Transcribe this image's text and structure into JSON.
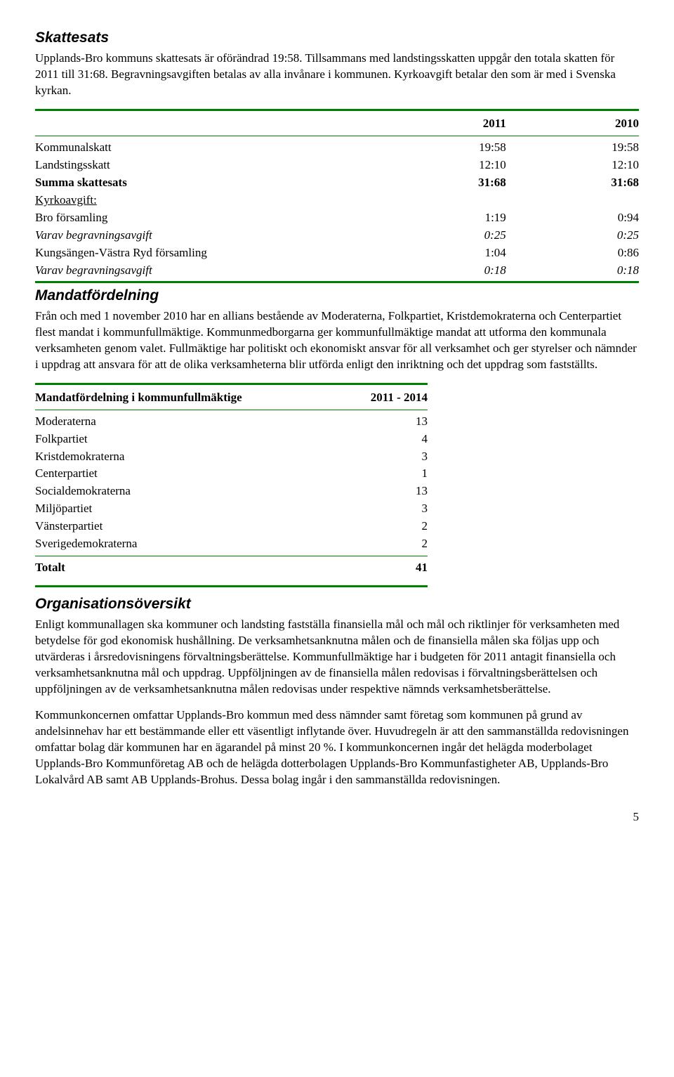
{
  "skattesats": {
    "heading": "Skattesats",
    "paragraph": "Upplands-Bro kommuns skattesats är oförändrad 19:58. Tillsammans med landstingsskatten uppgår den totala skatten för 2011 till 31:68. Begravningsavgiften betalas av alla invånare i kommunen. Kyrkoavgift betalar den som är med i Svenska kyrkan."
  },
  "tax_table": {
    "header_years": [
      "2011",
      "2010"
    ],
    "rows": [
      {
        "label": "Kommunalskatt",
        "v1": "19:58",
        "v2": "19:58",
        "bold": false
      },
      {
        "label": "Landstingsskatt",
        "v1": "12:10",
        "v2": "12:10",
        "bold": false
      },
      {
        "label": "Summa skattesats",
        "v1": "31:68",
        "v2": "31:68",
        "bold": true
      },
      {
        "label": "Kyrkoavgift:",
        "v1": "",
        "v2": "",
        "underline": true
      },
      {
        "label": "Bro församling",
        "v1": "1:19",
        "v2": "0:94",
        "bold": false
      },
      {
        "label": "Varav begravningsavgift",
        "v1": "0:25",
        "v2": "0:25",
        "italic": true
      },
      {
        "label": "Kungsängen-Västra Ryd församling",
        "v1": "1:04",
        "v2": "0:86",
        "bold": false
      },
      {
        "label": "Varav begravningsavgift",
        "v1": "0:18",
        "v2": "0:18",
        "italic": true
      }
    ]
  },
  "mandat": {
    "heading": "Mandatfördelning",
    "paragraph": "Från och med 1 november 2010 har en allians bestående av Moderaterna, Folkpartiet, Kristdemokraterna och Centerpartiet flest mandat i kommunfullmäktige. Kommunmedborgarna ger kommunfullmäktige mandat att utforma den kommunala verksamheten genom valet. Fullmäktige har politiskt och ekonomiskt ansvar för all verksamhet och ger styrelser och nämnder i uppdrag att ansvara för att de olika verksamheterna blir utförda enligt den inriktning och det uppdrag som fastställts."
  },
  "mandat_table": {
    "header_label": "Mandatfördelning i kommunfullmäktige",
    "header_period": "2011 - 2014",
    "rows": [
      {
        "party": "Moderaterna",
        "seats": "13"
      },
      {
        "party": "Folkpartiet",
        "seats": "4"
      },
      {
        "party": "Kristdemokraterna",
        "seats": "3"
      },
      {
        "party": "Centerpartiet",
        "seats": "1"
      },
      {
        "party": "Socialdemokraterna",
        "seats": "13"
      },
      {
        "party": "Miljöpartiet",
        "seats": "3"
      },
      {
        "party": "Vänsterpartiet",
        "seats": "2"
      },
      {
        "party": "Sverigedemokraterna",
        "seats": "2"
      }
    ],
    "total_label": "Totalt",
    "total_value": "41"
  },
  "org": {
    "heading": "Organisationsöversikt",
    "p1": "Enligt kommunallagen ska kommuner och landsting fastställa finansiella mål och mål och riktlinjer för verksamheten med betydelse för god ekonomisk hushållning. De verksamhetsanknutna målen och de finansiella målen ska följas upp och utvärderas i årsredovisningens förvaltningsberättelse. Kommunfullmäktige har i budgeten för 2011 antagit finansiella och verksamhetsanknutna mål och uppdrag. Uppföljningen av de finansiella målen redovisas i förvaltningsberättelsen och uppföljningen av de verksamhetsanknutna målen redovisas under respektive nämnds verksamhetsberättelse.",
    "p2": "Kommunkoncernen omfattar Upplands-Bro kommun med dess nämnder samt företag som kommunen på grund av andelsinnehav har ett bestämmande eller ett väsentligt inflytande över. Huvudregeln är att den sammanställda redovisningen omfattar bolag där kommunen har en ägarandel på minst 20 %. I kommunkoncernen ingår det helägda moderbolaget Upplands-Bro Kommunföretag AB och de helägda dotterbolagen Upplands-Bro Kommunfastigheter AB, Upplands-Bro Lokalvård AB samt AB Upplands-Brohus. Dessa bolag ingår i den sammanställda redovisningen."
  },
  "page_number": "5",
  "colors": {
    "rule": "#008000",
    "text": "#000000",
    "bg": "#ffffff"
  }
}
